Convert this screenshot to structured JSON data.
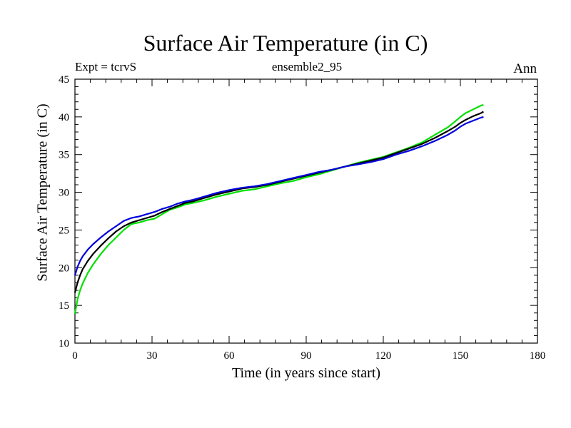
{
  "chart_data": {
    "type": "line",
    "title": "Surface Air Temperature (in C)",
    "subtitle": "ensemble2_95",
    "expt_label": "Expt = tcrvS",
    "season": "Ann",
    "xlabel": "Time (in years since start)",
    "ylabel": "Surface Air Temperature (in C)",
    "xlim": [
      0,
      180
    ],
    "ylim": [
      10,
      45
    ],
    "xticks": [
      0,
      30,
      60,
      90,
      120,
      150,
      180
    ],
    "yticks": [
      10,
      15,
      20,
      25,
      30,
      35,
      40,
      45
    ],
    "grid": false,
    "series": [
      {
        "name": "green",
        "color": "#00e000",
        "x": [
          0,
          1,
          2,
          3,
          5,
          7,
          10,
          13,
          16,
          19,
          22,
          25,
          28,
          31,
          34,
          37,
          40,
          43,
          46,
          50,
          55,
          60,
          65,
          70,
          75,
          80,
          85,
          90,
          95,
          100,
          105,
          110,
          115,
          120,
          125,
          130,
          135,
          140,
          145,
          148,
          150,
          152,
          155,
          158,
          159
        ],
        "y": [
          13.9,
          15.8,
          17.0,
          17.9,
          19.3,
          20.4,
          21.8,
          23.0,
          24.0,
          25.0,
          25.8,
          26.0,
          26.3,
          26.5,
          27.1,
          27.7,
          28.0,
          28.4,
          28.6,
          28.9,
          29.4,
          29.8,
          30.2,
          30.4,
          30.8,
          31.2,
          31.5,
          32.0,
          32.4,
          32.9,
          33.4,
          33.9,
          34.3,
          34.7,
          35.3,
          35.9,
          36.6,
          37.6,
          38.6,
          39.4,
          40.0,
          40.5,
          41.0,
          41.5,
          41.6
        ]
      },
      {
        "name": "black",
        "color": "#000000",
        "x": [
          0,
          1,
          2,
          3,
          5,
          7,
          10,
          13,
          16,
          19,
          22,
          25,
          28,
          31,
          34,
          37,
          40,
          43,
          46,
          50,
          55,
          60,
          65,
          70,
          75,
          80,
          85,
          90,
          95,
          100,
          105,
          110,
          115,
          120,
          125,
          130,
          135,
          140,
          145,
          148,
          150,
          152,
          155,
          158,
          159
        ],
        "y": [
          16.7,
          18.0,
          19.0,
          19.8,
          20.9,
          21.8,
          22.9,
          23.9,
          24.8,
          25.5,
          26.0,
          26.3,
          26.6,
          26.9,
          27.4,
          27.8,
          28.2,
          28.6,
          28.8,
          29.2,
          29.7,
          30.1,
          30.5,
          30.7,
          31.0,
          31.4,
          31.8,
          32.2,
          32.6,
          33.0,
          33.4,
          33.8,
          34.2,
          34.6,
          35.2,
          35.8,
          36.4,
          37.2,
          38.1,
          38.7,
          39.2,
          39.6,
          40.1,
          40.5,
          40.7
        ]
      },
      {
        "name": "blue",
        "color": "#0000dd",
        "x": [
          0,
          1,
          2,
          3,
          5,
          7,
          10,
          13,
          16,
          19,
          22,
          25,
          28,
          31,
          34,
          37,
          40,
          43,
          46,
          50,
          55,
          60,
          65,
          70,
          75,
          80,
          85,
          90,
          95,
          100,
          105,
          110,
          115,
          120,
          125,
          130,
          135,
          140,
          145,
          148,
          150,
          152,
          155,
          158,
          159
        ],
        "y": [
          19.0,
          20.1,
          20.9,
          21.5,
          22.4,
          23.1,
          24.0,
          24.8,
          25.5,
          26.2,
          26.6,
          26.8,
          27.1,
          27.4,
          27.8,
          28.1,
          28.5,
          28.8,
          29.0,
          29.4,
          29.9,
          30.3,
          30.6,
          30.8,
          31.1,
          31.5,
          31.9,
          32.3,
          32.7,
          33.0,
          33.4,
          33.7,
          34.0,
          34.4,
          35.0,
          35.5,
          36.1,
          36.8,
          37.6,
          38.2,
          38.7,
          39.1,
          39.5,
          39.9,
          40.0
        ]
      }
    ]
  }
}
